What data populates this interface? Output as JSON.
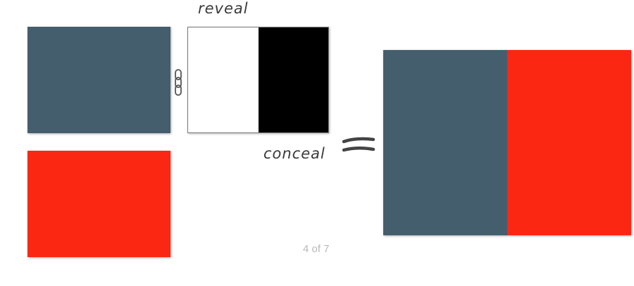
{
  "colors": {
    "slate": "#455e6e",
    "red": "#fb2712",
    "mask_white": "#ffffff",
    "mask_black": "#000000"
  },
  "labels": {
    "reveal": "reveal",
    "conceal": "conceal"
  },
  "icons": {
    "link": "chain-link-icon",
    "equals": "equals-icon"
  },
  "pagination": {
    "text": "4 of 7"
  }
}
